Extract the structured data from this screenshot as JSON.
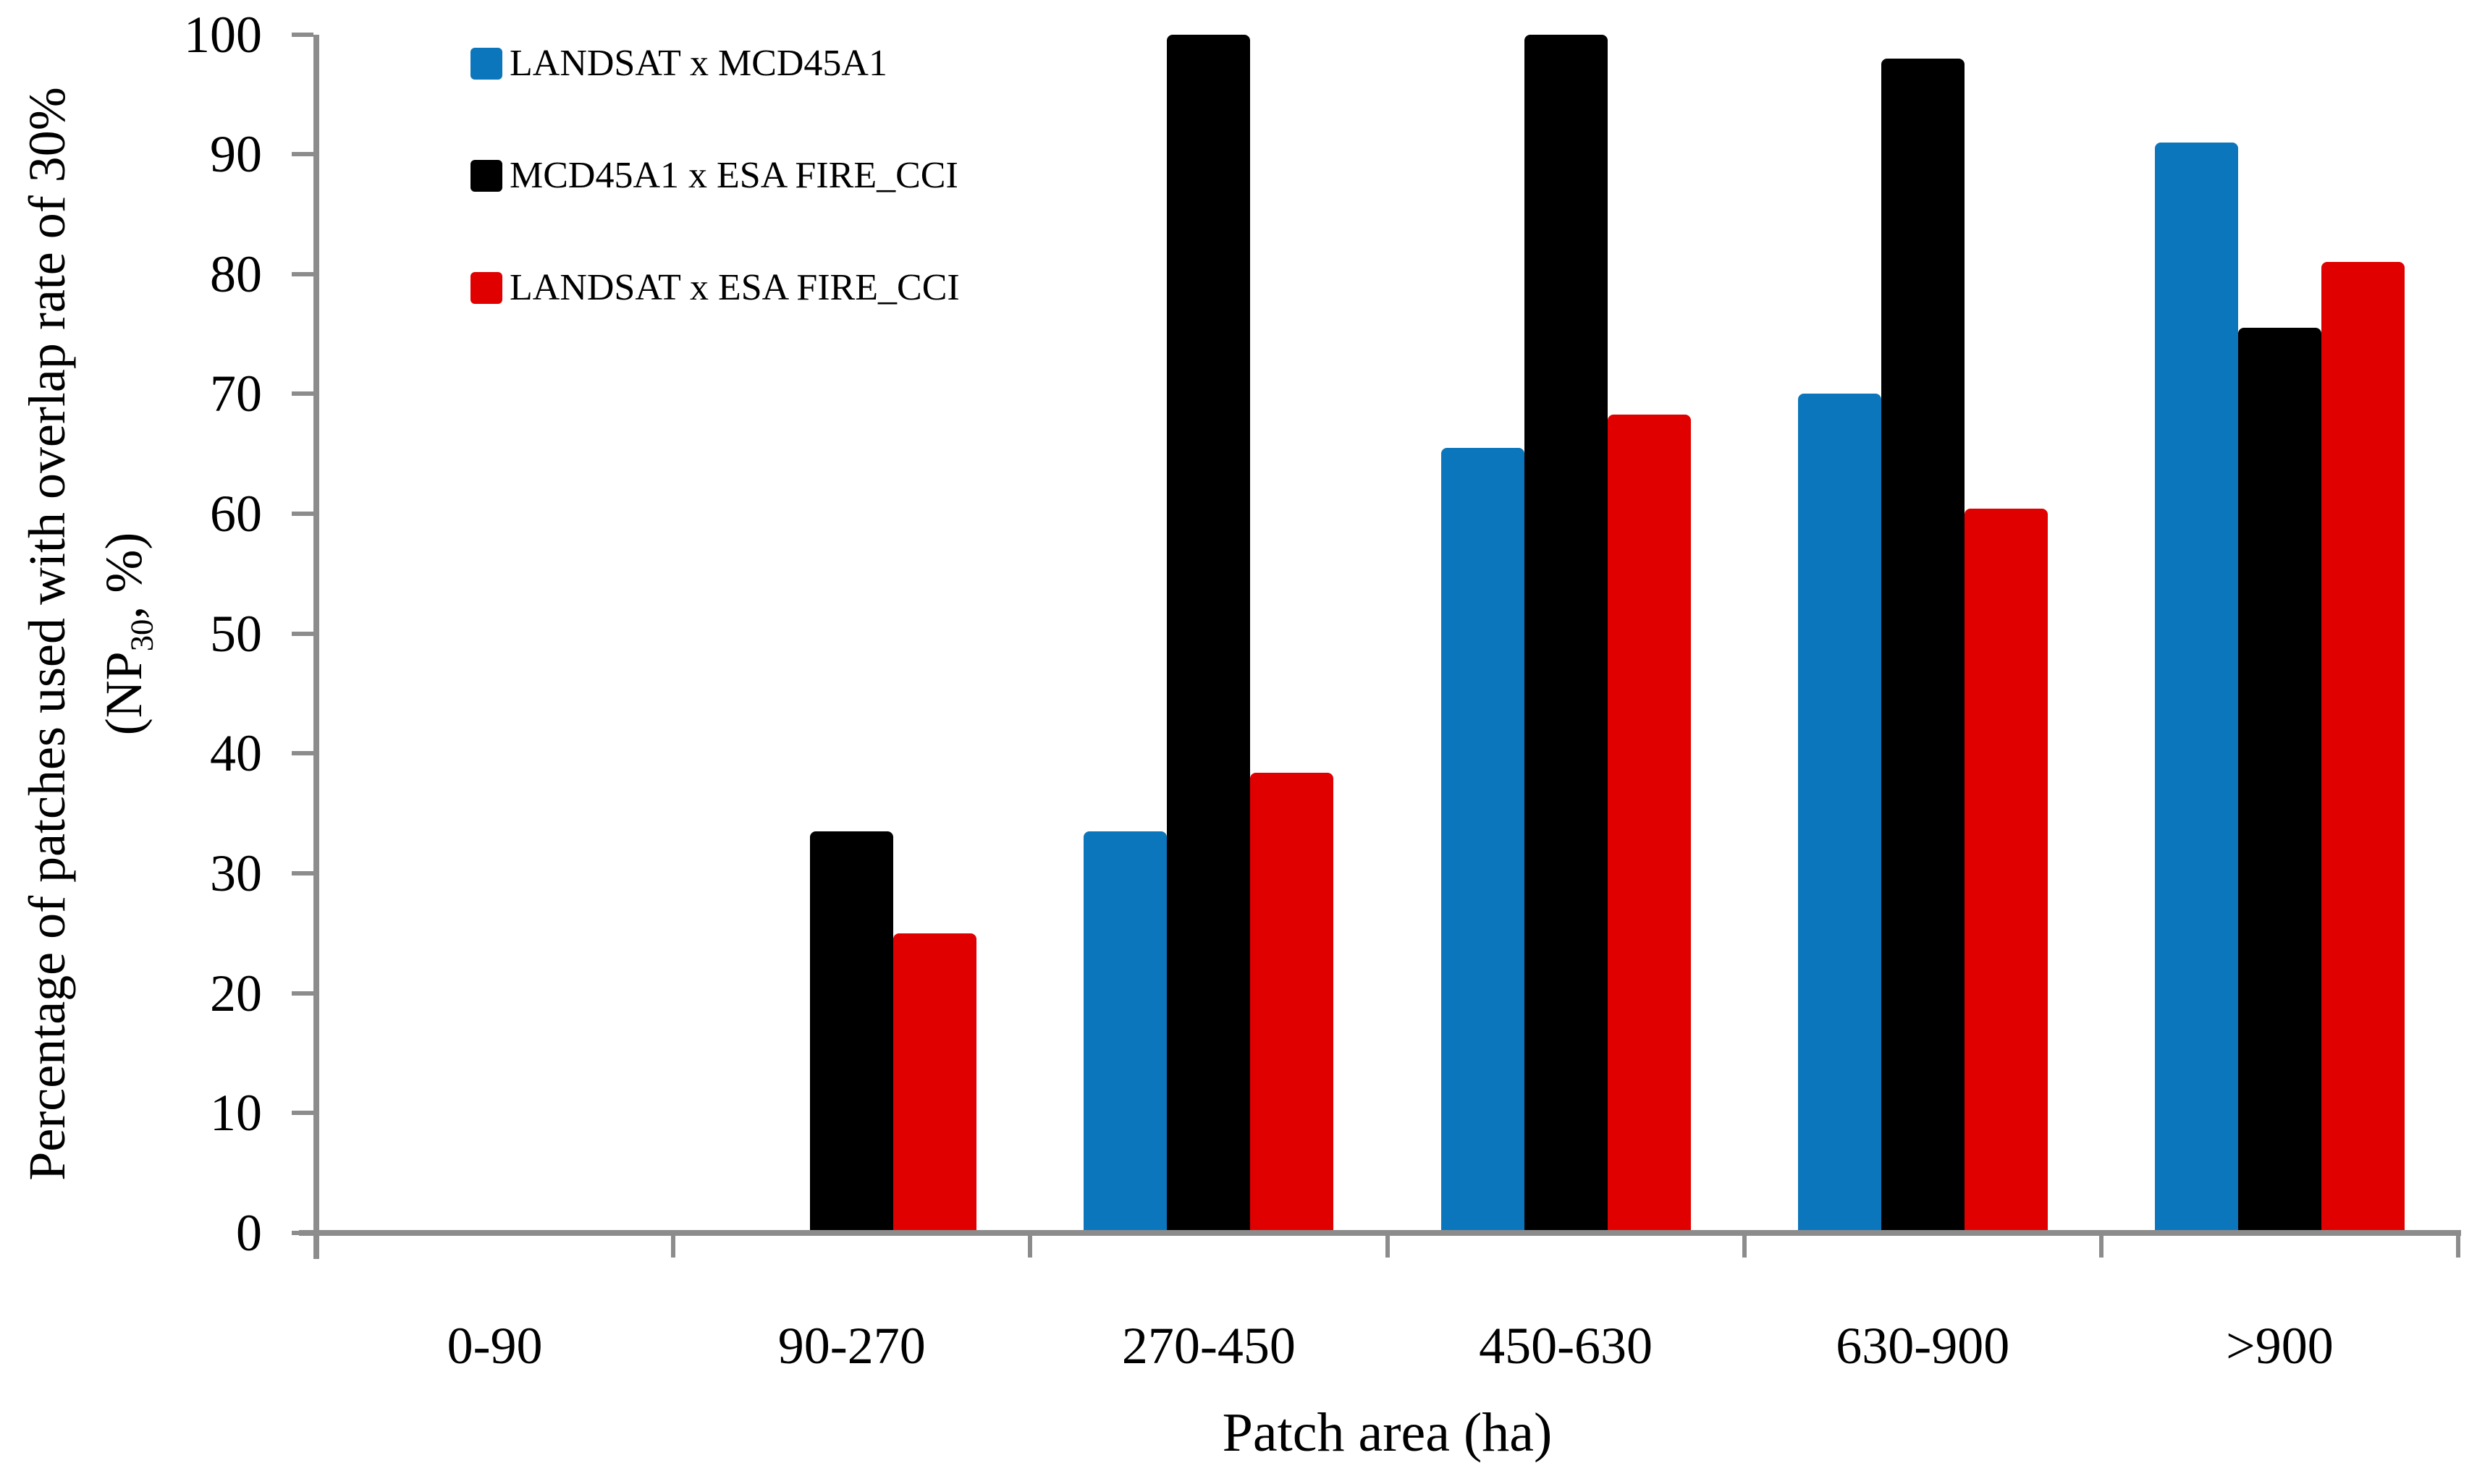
{
  "chart_data": {
    "type": "bar",
    "title": "",
    "xlabel": "Patch area (ha)",
    "ylabel_line1": "Percentage of patches used with overlap rate of 30%",
    "ylabel_line2_prefix": "(NP",
    "ylabel_line2_sub": "30",
    "ylabel_line2_suffix": ", %)",
    "categories": [
      "0-90",
      "90-270",
      "270-450",
      "450-630",
      "630-900",
      ">900"
    ],
    "series": [
      {
        "name": "LANDSAT x MCD45A1",
        "color": "#0B76BB",
        "values": [
          0,
          0,
          33.5,
          65.5,
          70,
          91
        ]
      },
      {
        "name": "MCD45A1 x ESA FIRE_CCI",
        "color": "#000000",
        "values": [
          0,
          33.5,
          100,
          100,
          98,
          75.5
        ]
      },
      {
        "name": "LANDSAT x ESA FIRE_CCI",
        "color": "#E00000",
        "values": [
          0,
          25,
          38.4,
          68.3,
          60.4,
          81
        ]
      }
    ],
    "ylim": [
      0,
      100
    ],
    "y_ticks": [
      0,
      10,
      20,
      30,
      40,
      50,
      60,
      70,
      80,
      90,
      100
    ],
    "grid": false,
    "legend_position": "top-left",
    "axis_color": "#8C8C8C",
    "background": "#FFFFFF"
  }
}
